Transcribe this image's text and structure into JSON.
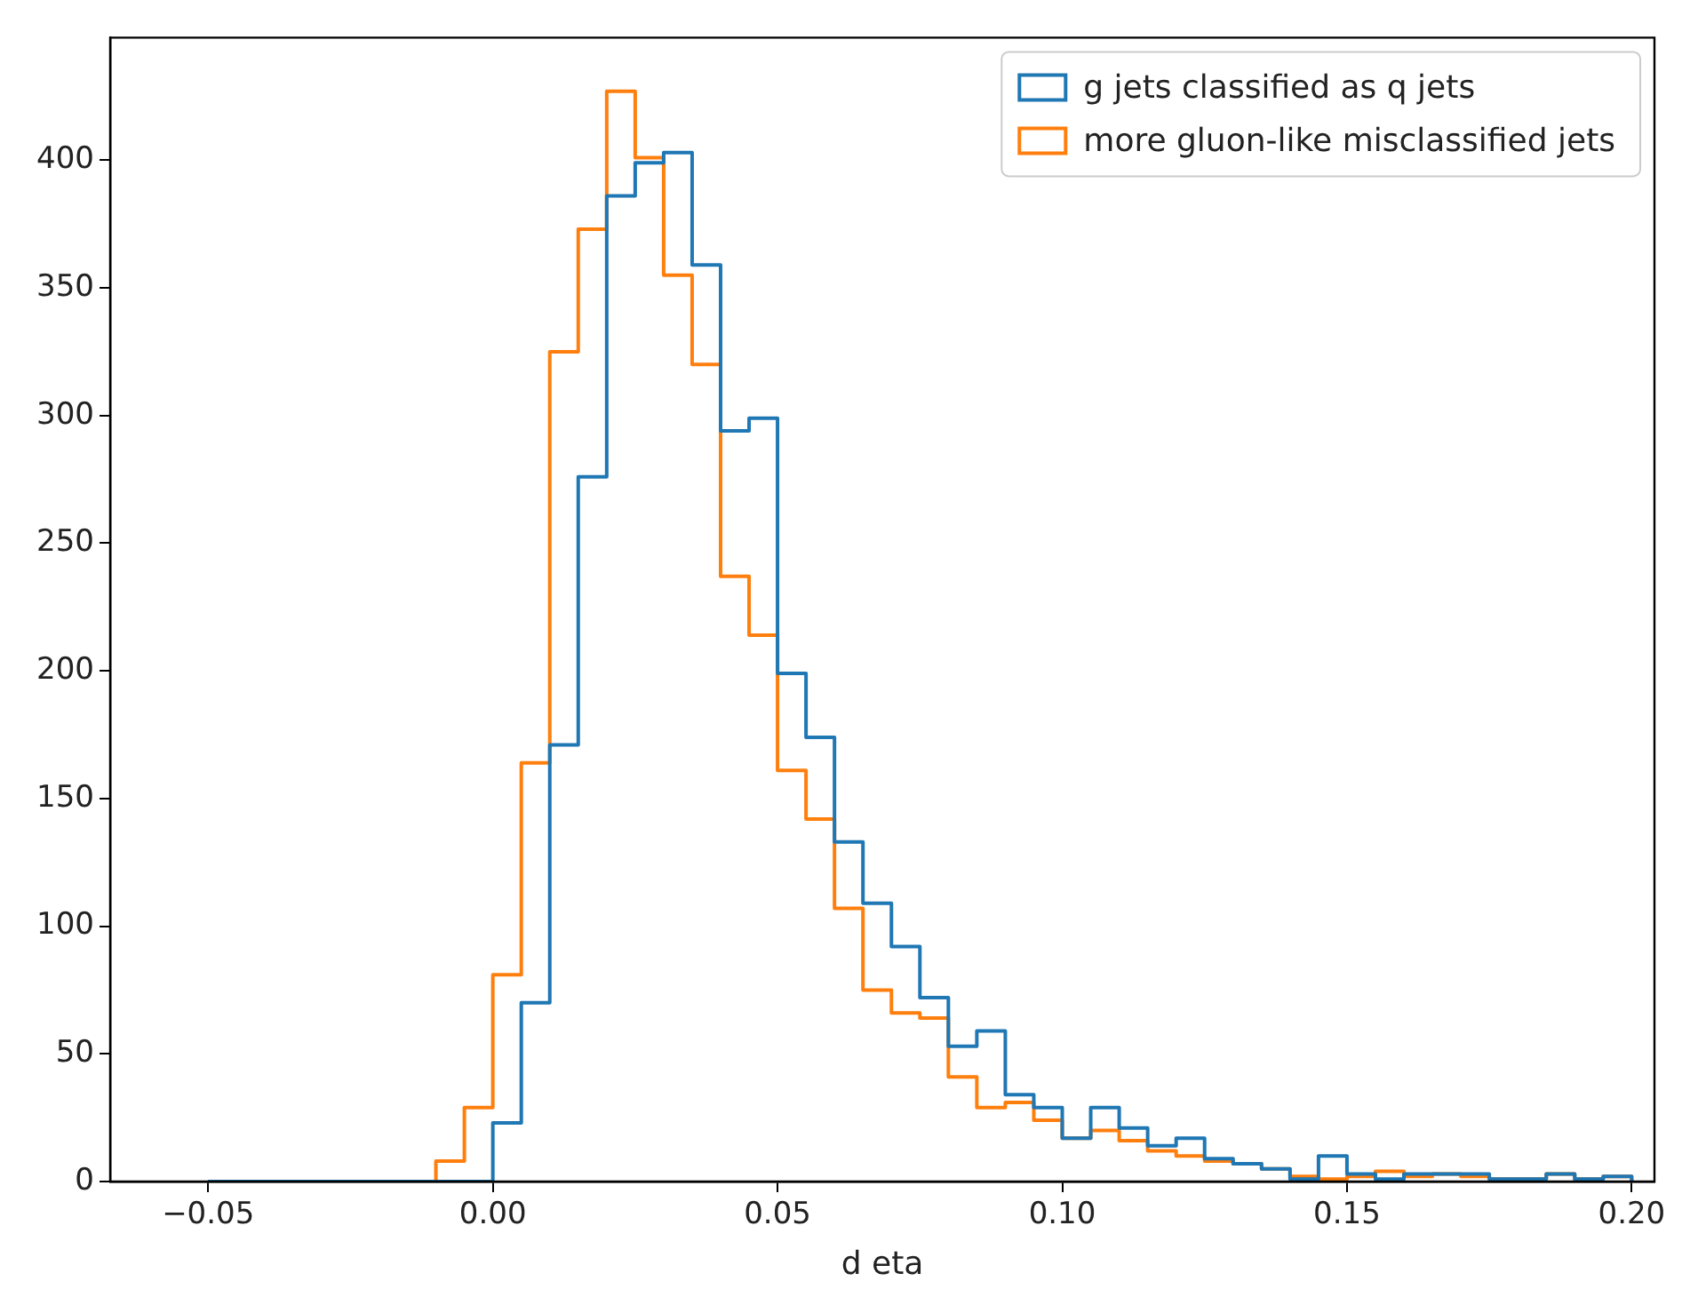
{
  "chart_data": {
    "type": "histogram",
    "xlabel": "d eta",
    "bins": [
      -0.05,
      -0.045,
      -0.04,
      -0.035,
      -0.03,
      -0.025,
      -0.02,
      -0.015,
      -0.01,
      -0.005,
      0,
      0.005,
      0.01,
      0.015,
      0.02,
      0.025,
      0.03,
      0.035,
      0.04,
      0.045,
      0.05,
      0.055,
      0.06,
      0.065,
      0.07,
      0.075,
      0.08,
      0.085,
      0.09,
      0.095,
      0.1,
      0.105,
      0.11,
      0.115,
      0.12,
      0.125,
      0.13,
      0.135,
      0.14,
      0.145,
      0.15,
      0.155,
      0.16,
      0.165,
      0.17,
      0.175,
      0.18,
      0.185,
      0.19,
      0.195,
      0.2
    ],
    "series": [
      {
        "name": "g jets classified as q jets",
        "color": "#1f77b4",
        "values": [
          0,
          0,
          0,
          0,
          0,
          0,
          0,
          0,
          0,
          0,
          23,
          70,
          171,
          276,
          386,
          399,
          403,
          359,
          294,
          299,
          199,
          174,
          133,
          109,
          92,
          72,
          53,
          59,
          34,
          29,
          17,
          29,
          21,
          14,
          17,
          9,
          7,
          5,
          1,
          10,
          3,
          1,
          3,
          3,
          3,
          1,
          1,
          3,
          1,
          2
        ]
      },
      {
        "name": "more gluon-like misclassified jets",
        "color": "#ff7f0e",
        "values": [
          0,
          0,
          0,
          0,
          0,
          0,
          0,
          0,
          8,
          29,
          81,
          164,
          325,
          373,
          427,
          401,
          355,
          320,
          237,
          214,
          161,
          142,
          107,
          75,
          66,
          64,
          41,
          29,
          31,
          24,
          17,
          20,
          16,
          12,
          10,
          8,
          7,
          5,
          2,
          1,
          2,
          4,
          2,
          3,
          2,
          1,
          1,
          3,
          1,
          2
        ]
      }
    ],
    "xlim": [
      -0.0672,
      0.204
    ],
    "ylim": [
      0,
      448
    ],
    "xticks": [
      {
        "value": -0.05,
        "label": "−0.05"
      },
      {
        "value": 0,
        "label": "0.00"
      },
      {
        "value": 0.05,
        "label": "0.05"
      },
      {
        "value": 0.1,
        "label": "0.10"
      },
      {
        "value": 0.15,
        "label": "0.15"
      },
      {
        "value": 0.2,
        "label": "0.20"
      }
    ],
    "yticks": [
      0,
      50,
      100,
      150,
      200,
      250,
      300,
      350,
      400
    ],
    "grid": false,
    "legend": "top right"
  }
}
